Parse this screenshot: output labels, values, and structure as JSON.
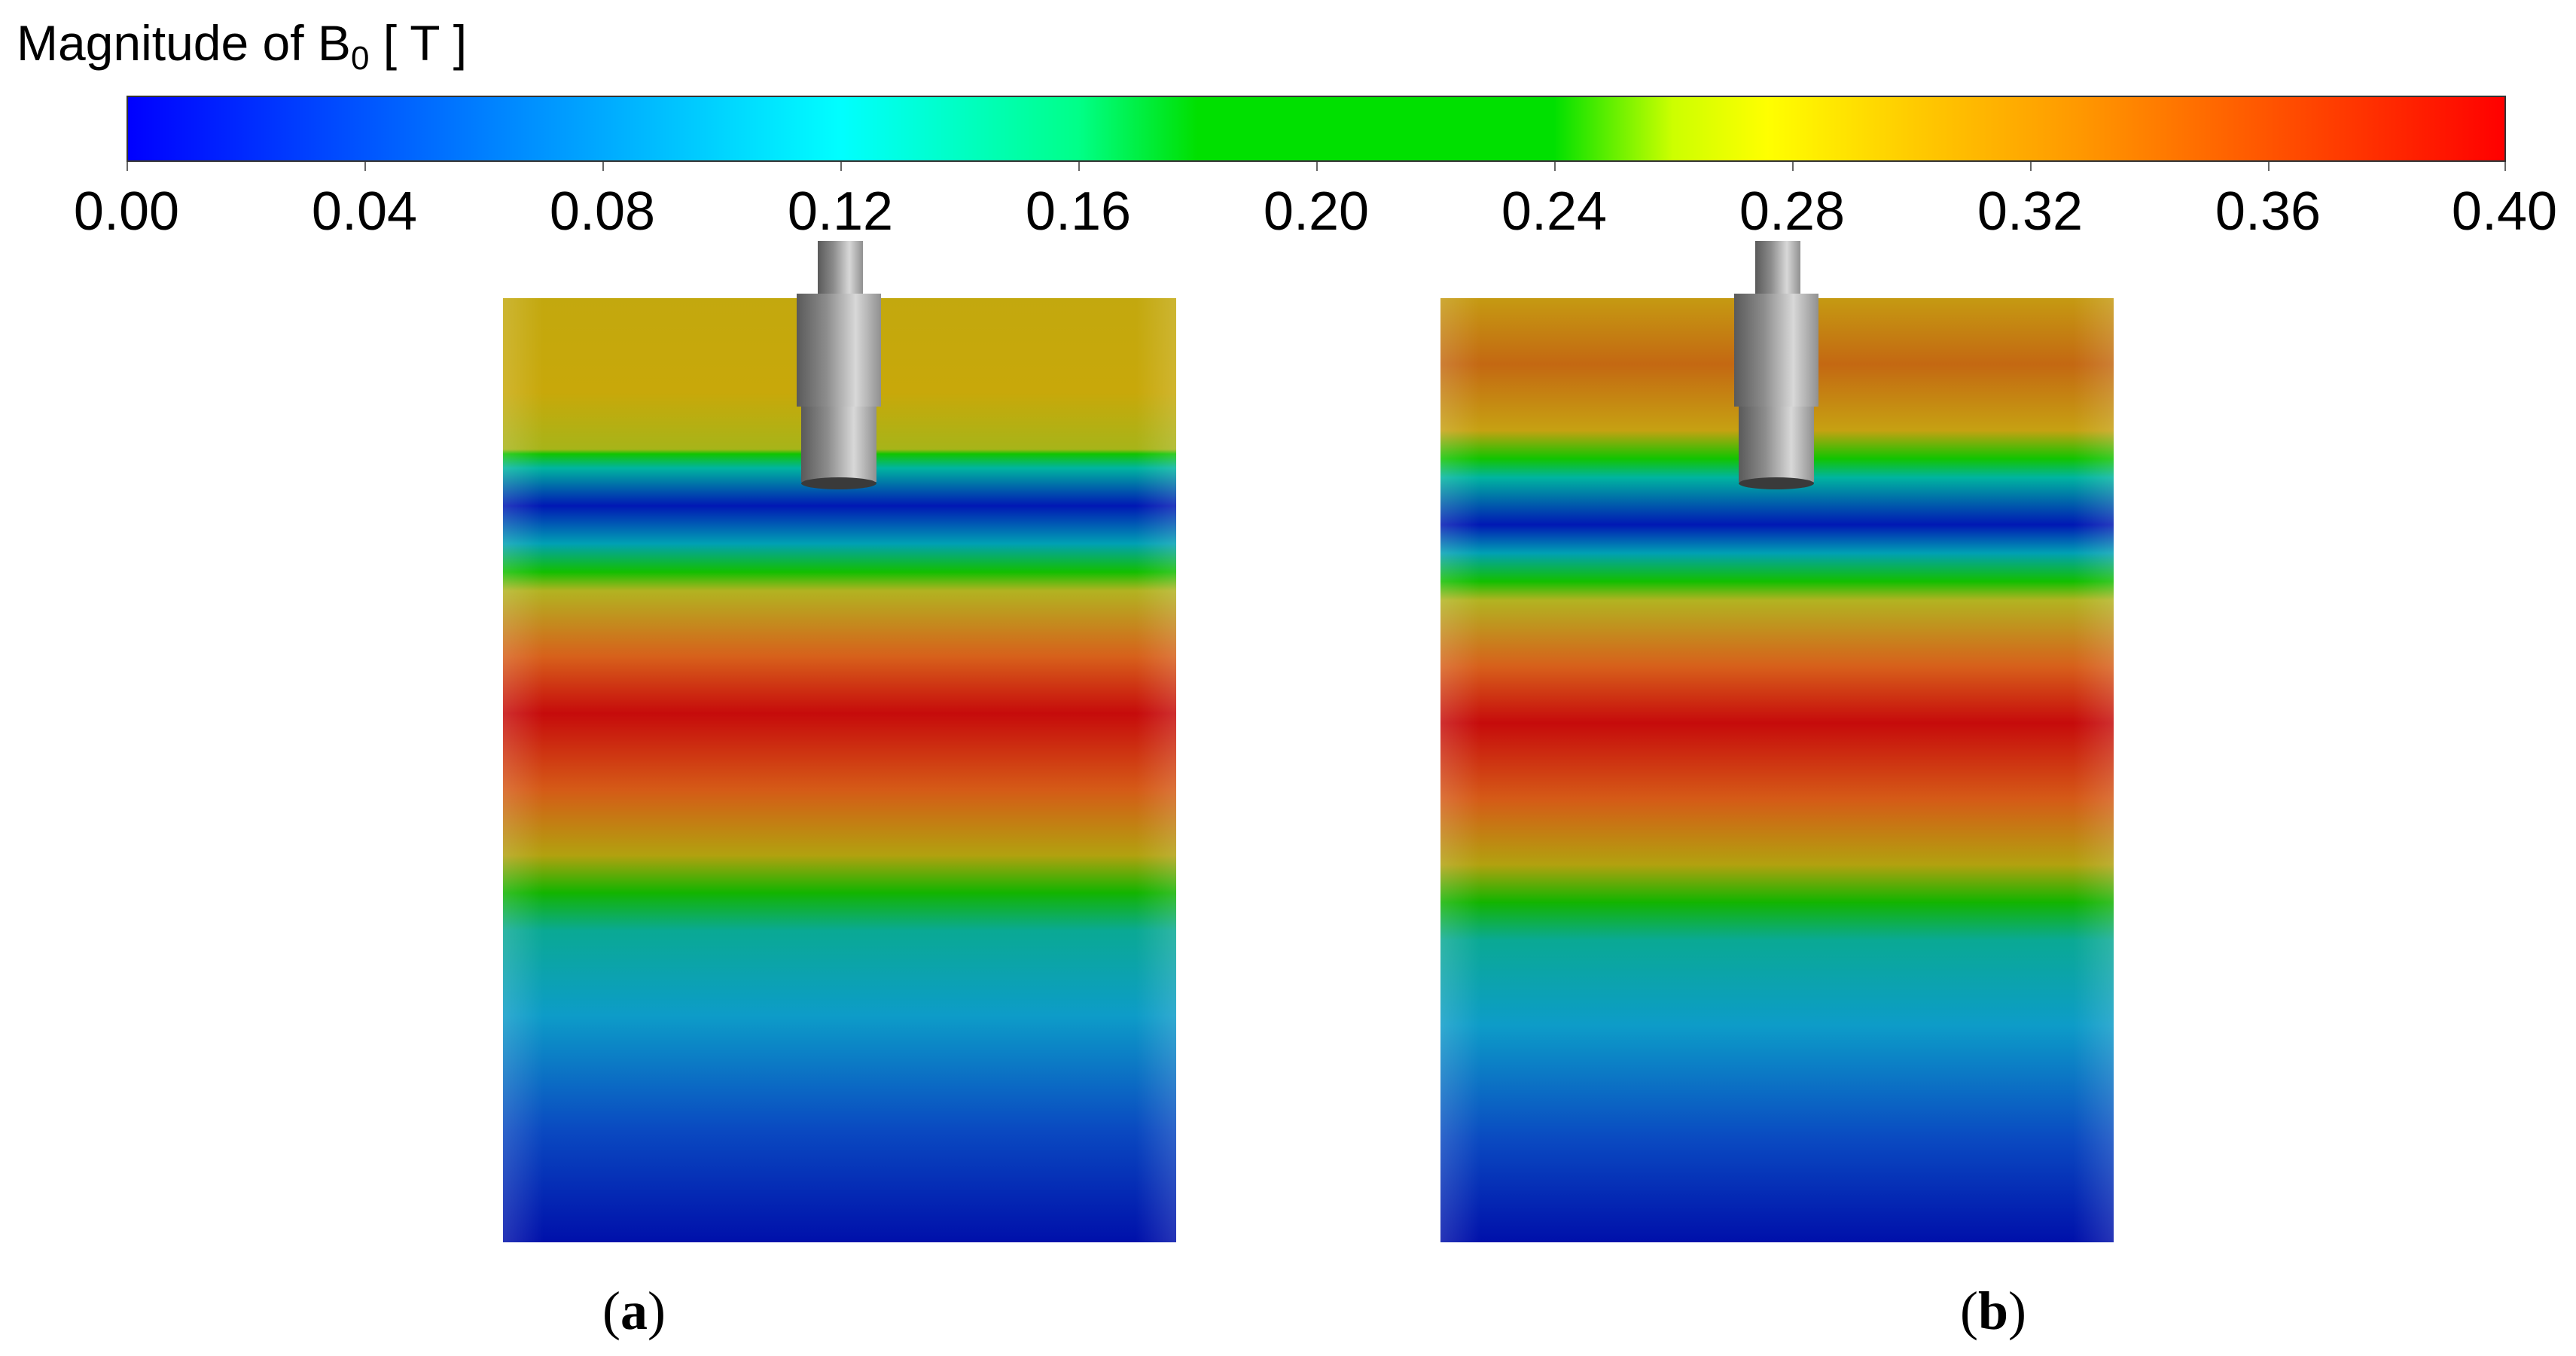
{
  "colorbar": {
    "title_prefix": "Magnitude of B",
    "title_subscript": "0",
    "title_suffix": " [ T ]",
    "min": 0.0,
    "max": 0.4,
    "ticks": [
      "0.00",
      "0.04",
      "0.08",
      "0.12",
      "0.16",
      "0.20",
      "0.24",
      "0.28",
      "0.32",
      "0.36",
      "0.40"
    ]
  },
  "panels": [
    {
      "label": "a"
    },
    {
      "label": "b"
    }
  ],
  "colors": {
    "low": "#0000ff",
    "mid": "#00e000",
    "high": "#ff0000",
    "shaft": "#9a9a9a"
  }
}
